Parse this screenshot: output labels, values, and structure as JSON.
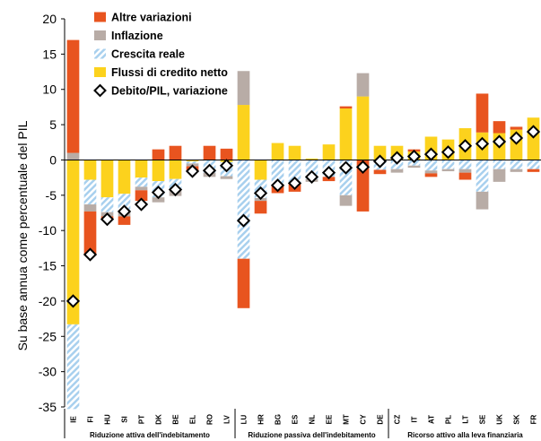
{
  "chart_data": {
    "type": "bar",
    "stacked": true,
    "title": "",
    "ylabel": "Su base annua come percentuale del PIL",
    "xlabel": "",
    "ylim": [
      -35,
      20
    ],
    "yticks": [
      20,
      15,
      10,
      5,
      0,
      -5,
      -10,
      -15,
      -20,
      -25,
      -30,
      -35
    ],
    "categories": [
      "IE",
      "FI",
      "HU",
      "SI",
      "PT",
      "DK",
      "BE",
      "EL",
      "RO",
      "LV",
      "LU",
      "HR",
      "BG",
      "ES",
      "NL",
      "EE",
      "MT",
      "CY",
      "DE",
      "CZ",
      "IT",
      "AT",
      "PL",
      "LT",
      "SE",
      "UK",
      "SK",
      "FR"
    ],
    "groups": [
      {
        "label": "Riduzione attiva dell'indebitamento",
        "categories": [
          "IE",
          "FI",
          "HU",
          "SI",
          "PT",
          "DK",
          "BE",
          "EL",
          "RO",
          "LV"
        ]
      },
      {
        "label": "Riduzione passiva dell'indebitamento",
        "categories": [
          "LU",
          "HR",
          "BG",
          "ES",
          "NL",
          "EE",
          "MT",
          "CY",
          "DE"
        ]
      },
      {
        "label": "Ricorso attivo alla leva finanziaria",
        "categories": [
          "CZ",
          "IT",
          "AT",
          "PL",
          "LT",
          "SE",
          "UK",
          "SK",
          "FR"
        ]
      }
    ],
    "legend_position": "top-left",
    "colors": {
      "altre": "#e8541f",
      "inflazione": "#b8aca6",
      "crescita_a": "#a8d0ee",
      "crescita_b": "#ffffff",
      "flussi": "#fcd21d",
      "marker": "#000000"
    },
    "series": [
      {
        "name": "Altre variazioni",
        "key": "altre",
        "values": [
          16.0,
          -6.2,
          -0.4,
          -1.2,
          -1.5,
          1.5,
          2.0,
          -0.6,
          2.0,
          1.6,
          -7.0,
          -1.8,
          -1.2,
          -1.2,
          0.0,
          -0.6,
          0.3,
          -7.3,
          -0.6,
          0.0,
          0.3,
          -0.5,
          0.0,
          -1.0,
          5.5,
          1.7,
          0.4,
          -0.4
        ]
      },
      {
        "name": "Inflazione",
        "key": "inflazione",
        "values": [
          1.0,
          -1.0,
          -0.6,
          -0.7,
          -0.5,
          -0.7,
          -0.8,
          -0.4,
          -0.6,
          -0.4,
          4.8,
          -0.4,
          0.0,
          0.0,
          -0.4,
          0.0,
          -1.5,
          3.3,
          0.0,
          -0.5,
          -0.3,
          -0.4,
          -0.3,
          -0.5,
          -2.5,
          -1.8,
          -0.4,
          0.0
        ]
      },
      {
        "name": "Crescita reale",
        "key": "crescita",
        "values": [
          -12.0,
          -3.5,
          -2.1,
          -2.5,
          -1.3,
          -2.3,
          -1.6,
          -0.3,
          -1.8,
          -2.0,
          -14.0,
          -2.6,
          -3.5,
          -3.3,
          -2.7,
          -2.4,
          -5.0,
          0.0,
          -1.4,
          -1.3,
          -0.8,
          -1.5,
          -1.3,
          -1.3,
          -4.5,
          -1.3,
          -1.3,
          -1.3
        ]
      },
      {
        "name": "Flussi di credito netto",
        "key": "flussi",
        "values": [
          -23.3,
          -2.8,
          -5.3,
          -4.8,
          -2.5,
          -3.0,
          -2.7,
          -0.2,
          0.0,
          -0.3,
          7.8,
          -2.8,
          2.4,
          2.0,
          0.2,
          2.2,
          7.3,
          9.0,
          2.0,
          2.0,
          1.2,
          3.3,
          2.9,
          4.5,
          3.9,
          3.8,
          4.3,
          6.0
        ]
      }
    ],
    "debt_series": {
      "name": "Debito/PIL, variazione",
      "values": [
        -20.0,
        -13.4,
        -8.4,
        -7.3,
        -6.3,
        -4.6,
        -4.2,
        -1.6,
        -1.5,
        -0.8,
        -8.6,
        -4.7,
        -3.6,
        -3.3,
        -2.4,
        -1.8,
        -1.1,
        -1.0,
        -0.2,
        0.3,
        0.5,
        0.8,
        1.1,
        2.0,
        2.3,
        2.6,
        3.1,
        4.0
      ]
    }
  }
}
